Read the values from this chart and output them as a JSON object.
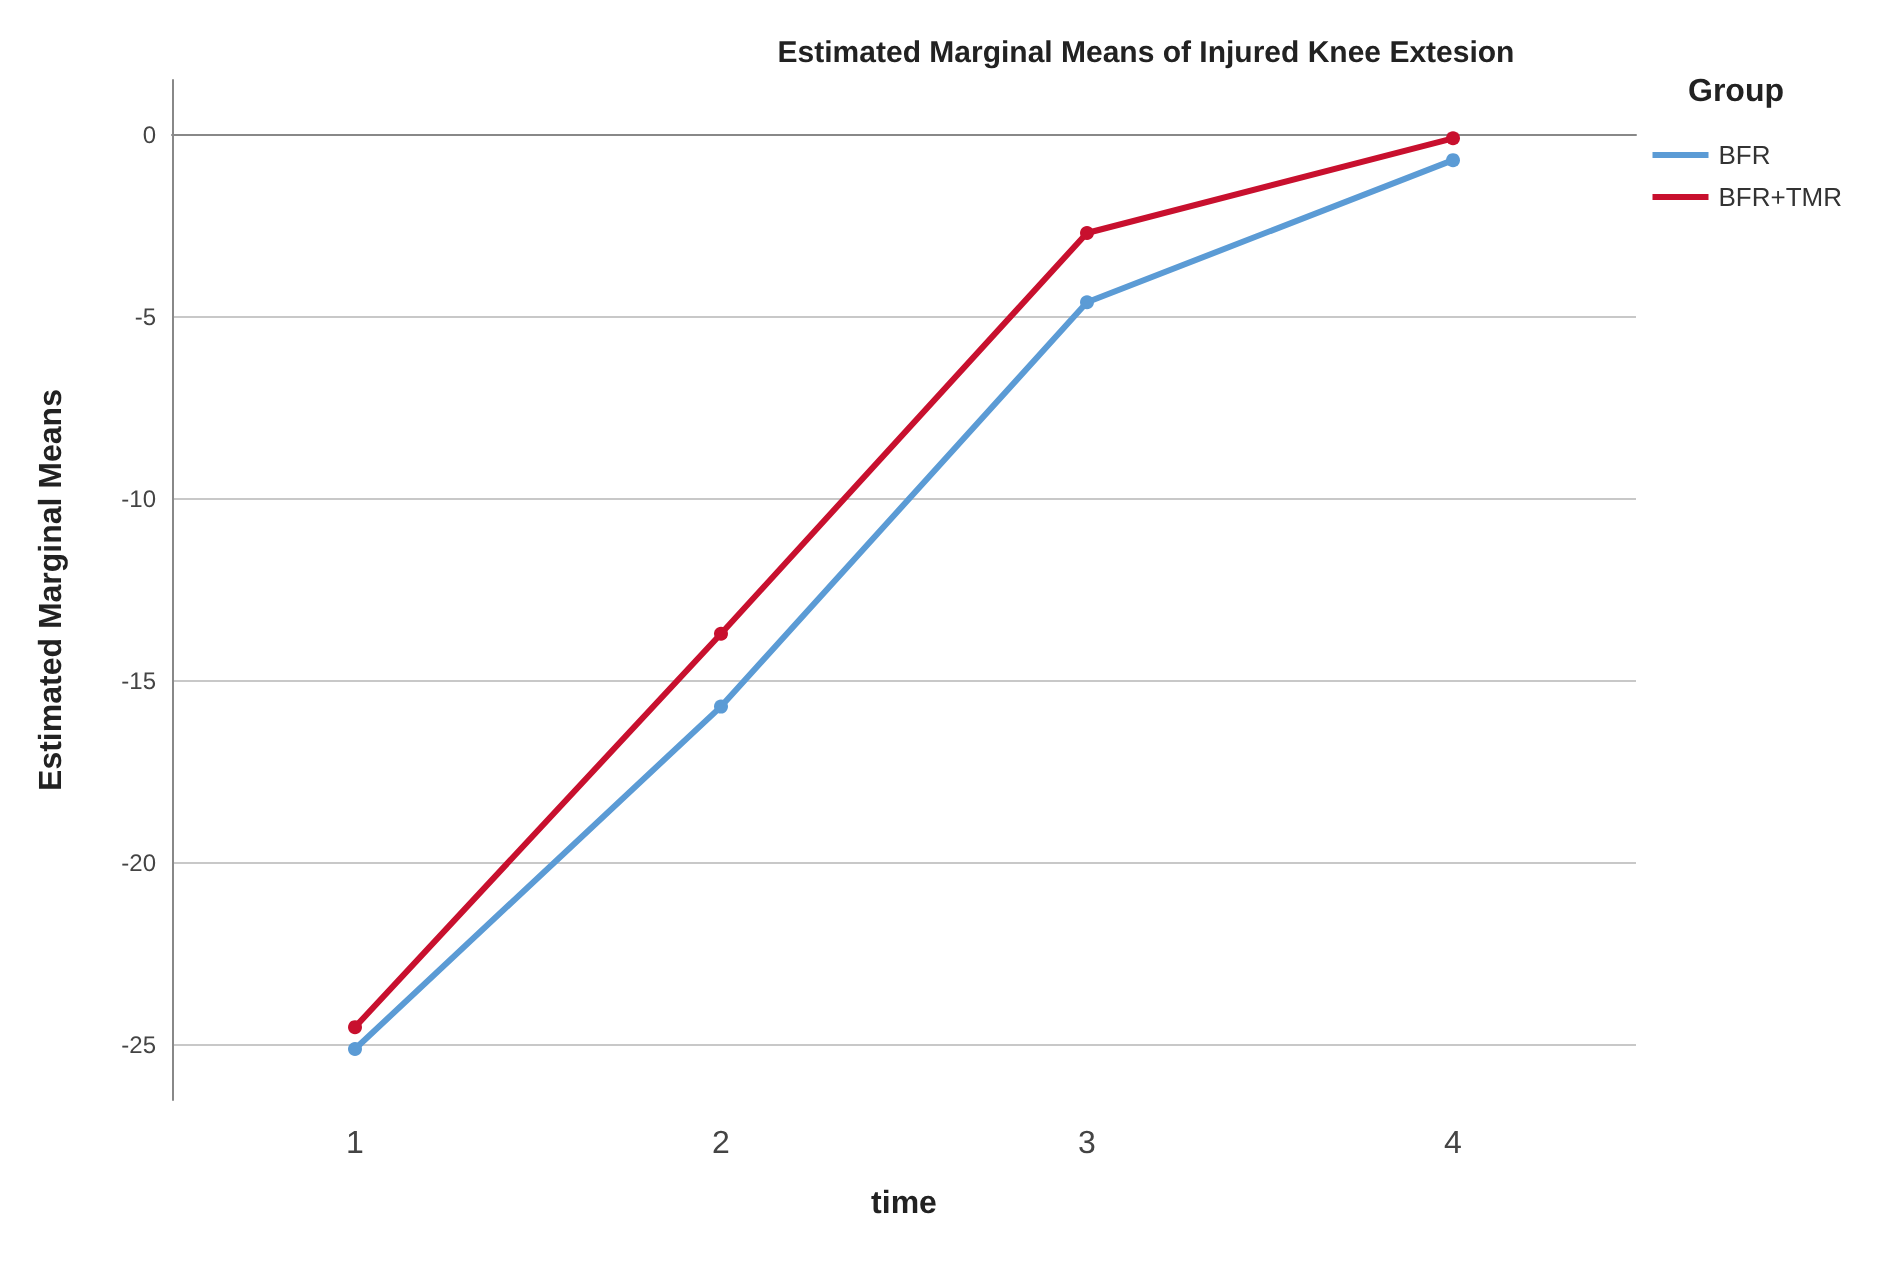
{
  "chart_data": {
    "type": "line",
    "title": "Estimated Marginal Means of Injured Knee Extesion",
    "xlabel": "time",
    "ylabel": "Estimated Marginal Means",
    "legend_title": "Group",
    "legend": "right",
    "grid": "y",
    "marker": "circle",
    "line_style": "solid",
    "categories": [
      "1",
      "2",
      "3",
      "4"
    ],
    "series": [
      {
        "name": "BFR",
        "color": "#5b9bd5",
        "values": [
          -25.1,
          -15.7,
          -4.6,
          -0.7
        ]
      },
      {
        "name": "BFR+TMR",
        "color": "#c8102e",
        "values": [
          -24.5,
          -13.7,
          -2.7,
          -0.1
        ]
      }
    ],
    "ylim": [
      -26.5,
      1.5
    ],
    "yticks": [
      -25,
      -20,
      -15,
      -10,
      -5,
      0
    ]
  }
}
